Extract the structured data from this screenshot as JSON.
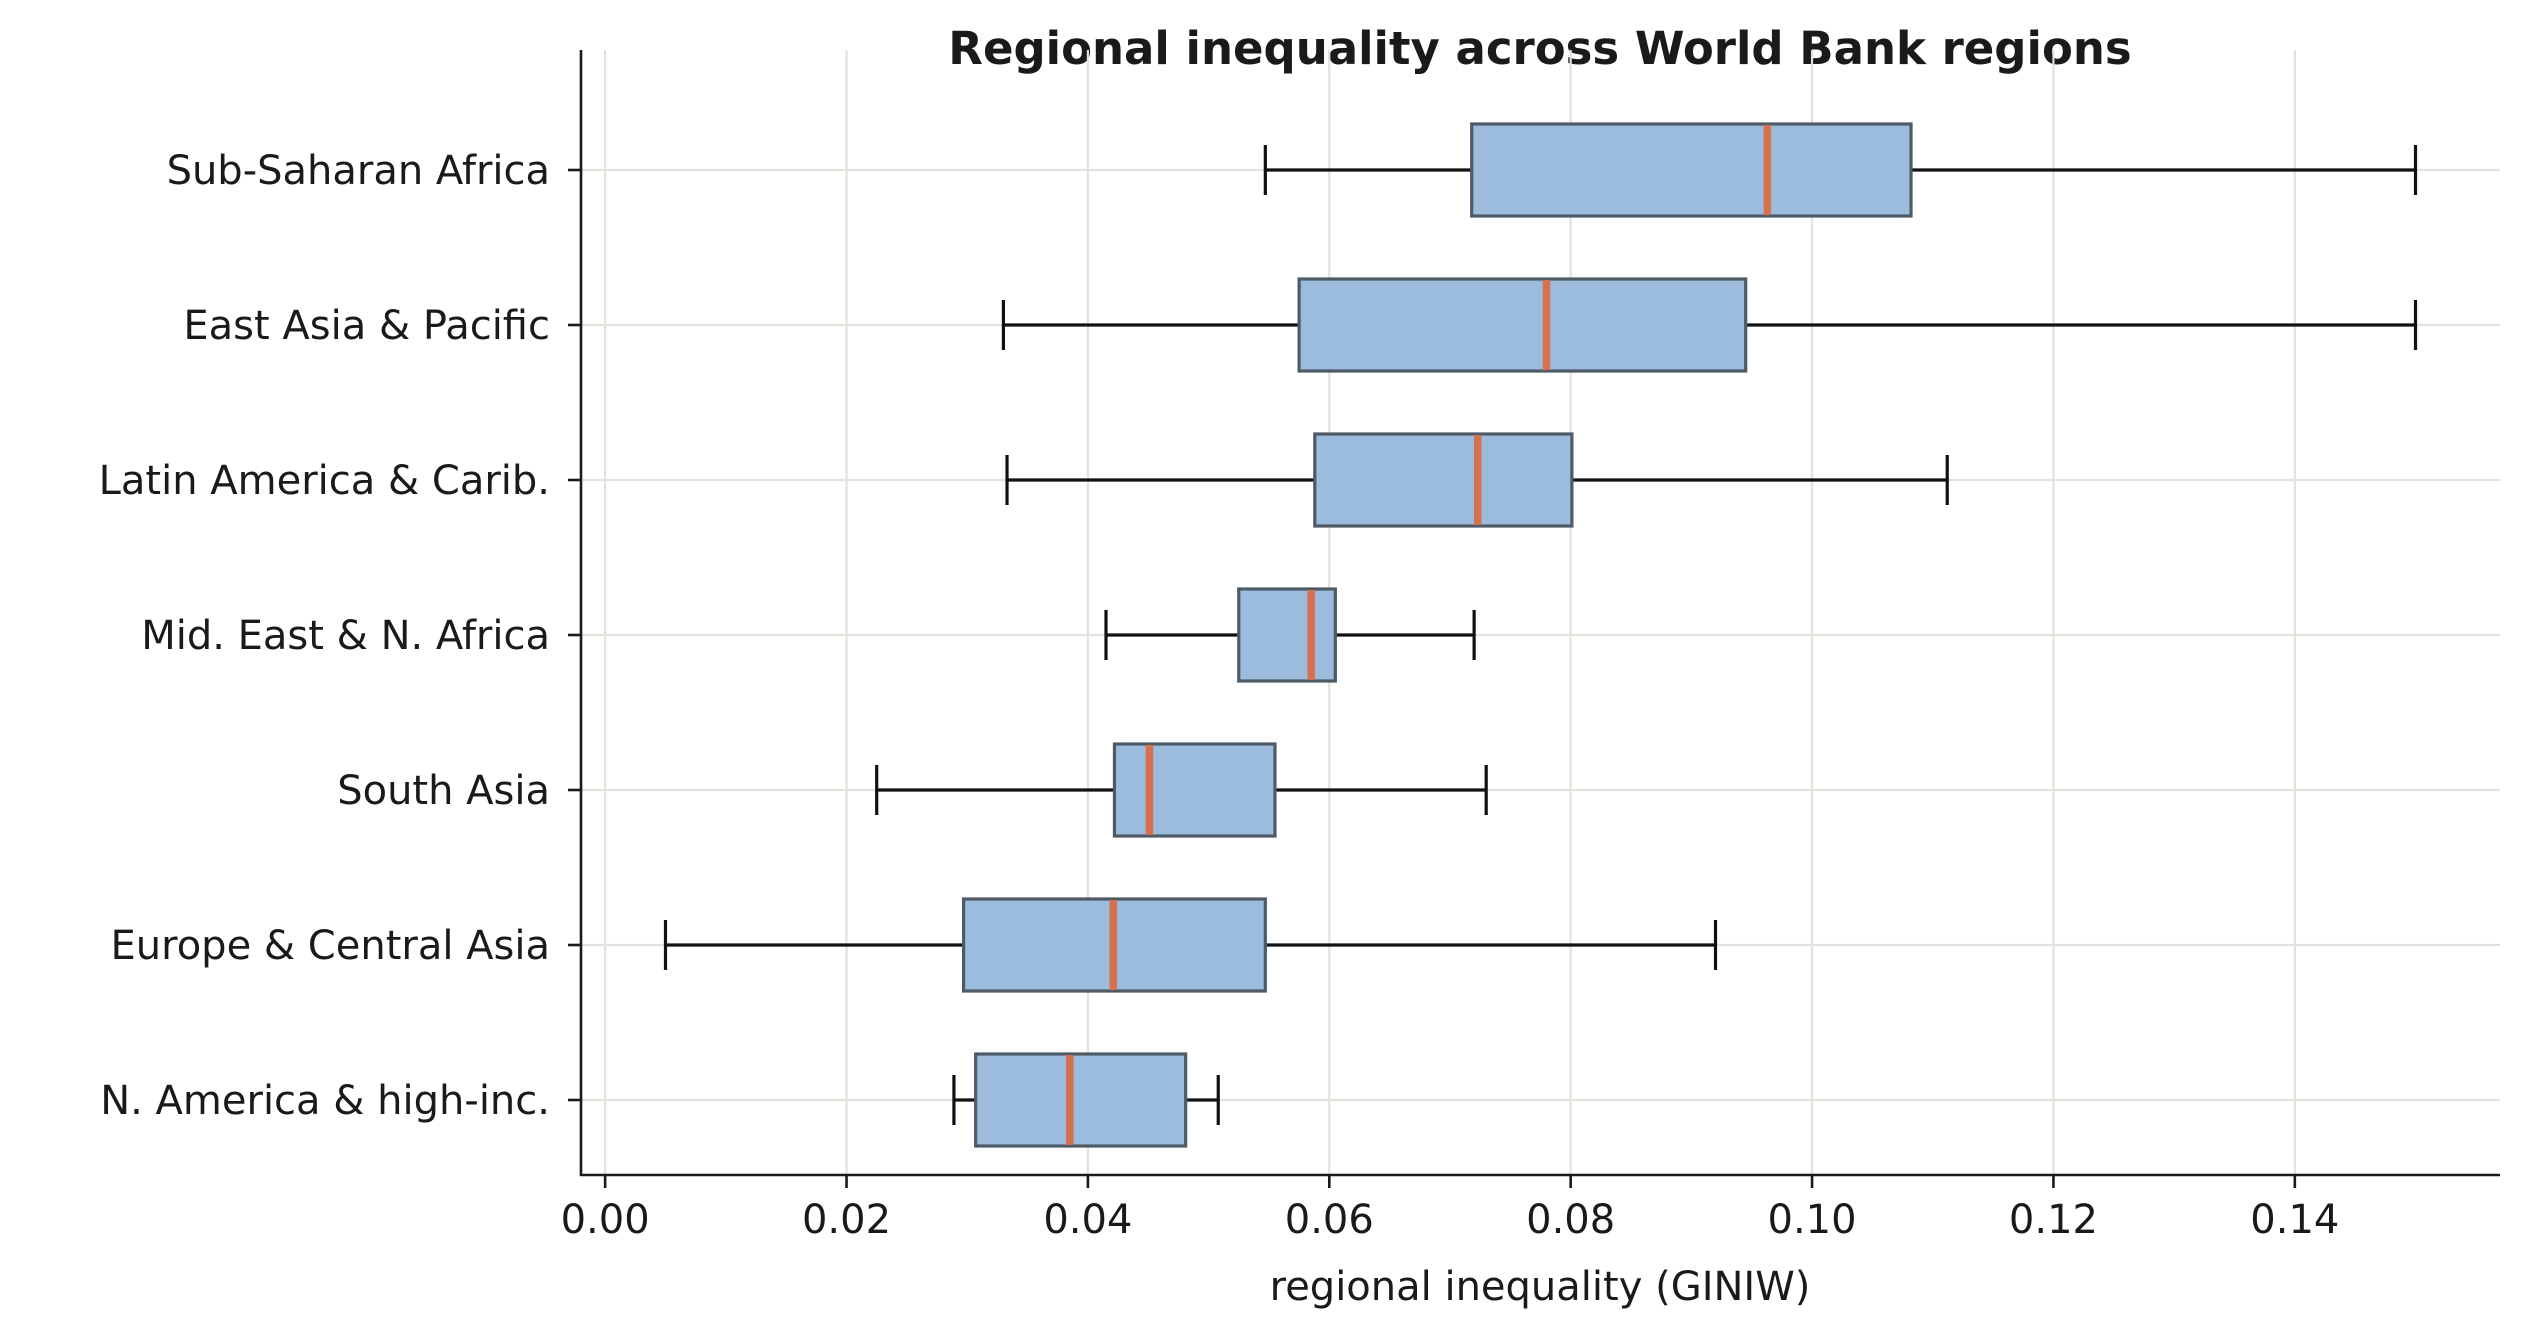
{
  "chart_data": {
    "type": "box",
    "title": "Regional inequality across World Bank regions",
    "xlabel": "regional inequality (GINIW)",
    "ylabel": "",
    "xlim": [
      -0.002,
      0.157
    ],
    "x_ticks": [
      "0.00",
      "0.02",
      "0.04",
      "0.06",
      "0.08",
      "0.10",
      "0.12",
      "0.14"
    ],
    "x_tick_values": [
      0.0,
      0.02,
      0.04,
      0.06,
      0.08,
      0.1,
      0.12,
      0.14
    ],
    "orientation": "horizontal",
    "grid": true,
    "colors": {
      "box_fill": "#9bbcdd",
      "box_edge": "#4e5a66",
      "median": "#d6714f",
      "whisker": "#111111",
      "grid": "#e2e2dc"
    },
    "series": [
      {
        "category": "Sub-Saharan Africa",
        "whisker_low": 0.0547,
        "q1": 0.0718,
        "median": 0.0963,
        "q3": 0.1082,
        "whisker_high": 0.15
      },
      {
        "category": "East Asia & Pacific",
        "whisker_low": 0.033,
        "q1": 0.0575,
        "median": 0.078,
        "q3": 0.0945,
        "whisker_high": 0.15
      },
      {
        "category": "Latin America & Carib.",
        "whisker_low": 0.0333,
        "q1": 0.0588,
        "median": 0.0723,
        "q3": 0.0801,
        "whisker_high": 0.1112
      },
      {
        "category": "Mid. East & N. Africa",
        "whisker_low": 0.0415,
        "q1": 0.0525,
        "median": 0.0585,
        "q3": 0.0605,
        "whisker_high": 0.072
      },
      {
        "category": "South Asia",
        "whisker_low": 0.0225,
        "q1": 0.0422,
        "median": 0.0451,
        "q3": 0.0555,
        "whisker_high": 0.073
      },
      {
        "category": "Europe & Central Asia",
        "whisker_low": 0.005,
        "q1": 0.0297,
        "median": 0.0421,
        "q3": 0.0547,
        "whisker_high": 0.092
      },
      {
        "category": "N. America & high-inc.",
        "whisker_low": 0.0289,
        "q1": 0.0307,
        "median": 0.0385,
        "q3": 0.0481,
        "whisker_high": 0.0508
      }
    ]
  }
}
